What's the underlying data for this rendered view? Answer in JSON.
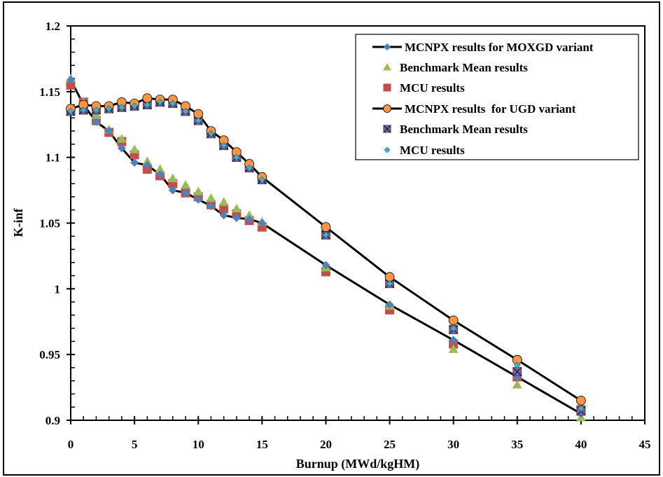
{
  "chart_data": {
    "type": "line",
    "title": "",
    "xlabel": "Burnup (MWd/kgHM)",
    "ylabel": "K-inf",
    "xlim": [
      0,
      45
    ],
    "ylim": [
      0.9,
      1.2
    ],
    "x_major_ticks": [
      0,
      5,
      10,
      15,
      20,
      25,
      30,
      35,
      40,
      45
    ],
    "x_tick_labels": [
      "0",
      "5",
      "10",
      "15",
      "20",
      "25",
      "30",
      "35",
      "40",
      "45"
    ],
    "x_minor_step": 1,
    "y_major_ticks": [
      0.9,
      0.95,
      1.0,
      1.05,
      1.1,
      1.15,
      1.2
    ],
    "y_tick_labels": [
      "0.9",
      "0.95",
      "1",
      "1.05",
      "1.1",
      "1.15",
      "1.2"
    ],
    "y_minor_step": 0.01,
    "grid": false,
    "legend_position": "top-right",
    "x": [
      0,
      1,
      2,
      3,
      4,
      5,
      6,
      7,
      8,
      9,
      10,
      11,
      12,
      13,
      14,
      15,
      20,
      25,
      30,
      35,
      40
    ],
    "series": [
      {
        "name": "MCNPX results for MOXGD variant",
        "marker": "diamond",
        "line": true,
        "color": "#4F81BD",
        "values": [
          1.159,
          1.14,
          1.127,
          1.12,
          1.107,
          1.096,
          1.094,
          1.087,
          1.075,
          1.073,
          1.068,
          1.063,
          1.056,
          1.054,
          1.053,
          1.05,
          1.018,
          0.988,
          0.961,
          0.933,
          0.905
        ]
      },
      {
        "name": "Benchmark Mean results",
        "marker": "triangle",
        "line": false,
        "color": "#9BBB59",
        "values": [
          1.16,
          1.142,
          1.132,
          1.121,
          1.114,
          1.106,
          1.097,
          1.091,
          1.084,
          1.079,
          1.074,
          1.069,
          1.066,
          1.061,
          1.056,
          1.051,
          1.016,
          0.987,
          0.954,
          0.927,
          0.902
        ]
      },
      {
        "name": "MCU results",
        "marker": "square",
        "line": false,
        "color": "#C0504D",
        "values": [
          1.155,
          1.142,
          1.128,
          1.119,
          1.112,
          1.102,
          1.091,
          1.086,
          1.08,
          1.073,
          1.07,
          1.064,
          1.061,
          1.057,
          1.052,
          1.047,
          1.013,
          0.984,
          0.958,
          0.933,
          0.908
        ]
      },
      {
        "name": "MCNPX results  for UGD variant",
        "marker": "circle",
        "line": true,
        "color": "#F79646",
        "values": [
          1.137,
          1.14,
          1.139,
          1.139,
          1.142,
          1.141,
          1.145,
          1.144,
          1.144,
          1.139,
          1.133,
          1.12,
          1.113,
          1.104,
          1.095,
          1.085,
          1.047,
          1.009,
          0.976,
          0.946,
          0.915
        ]
      },
      {
        "name": "Benchmark Mean results",
        "marker": "x-square",
        "line": false,
        "color": "#8064A2",
        "values": [
          1.135,
          1.136,
          1.136,
          1.137,
          1.138,
          1.139,
          1.14,
          1.142,
          1.141,
          1.135,
          1.128,
          1.118,
          1.109,
          1.1,
          1.092,
          1.083,
          1.041,
          1.004,
          0.969,
          0.937,
          0.907
        ]
      },
      {
        "name": "MCU results",
        "marker": "small-diamond",
        "line": false,
        "color": "#4BACC6",
        "values": [
          1.135,
          1.136,
          1.136,
          1.137,
          1.138,
          1.139,
          1.14,
          1.142,
          1.141,
          1.135,
          1.128,
          1.118,
          1.109,
          1.1,
          1.092,
          1.083,
          1.041,
          1.004,
          0.97,
          0.942,
          0.909
        ]
      }
    ]
  }
}
